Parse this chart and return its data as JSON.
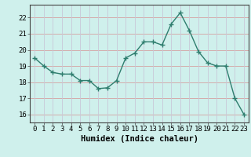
{
  "x": [
    0,
    1,
    2,
    3,
    4,
    5,
    6,
    7,
    8,
    9,
    10,
    11,
    12,
    13,
    14,
    15,
    16,
    17,
    18,
    19,
    20,
    21,
    22,
    23
  ],
  "y": [
    19.5,
    19.0,
    18.6,
    18.5,
    18.5,
    18.1,
    18.1,
    17.6,
    17.65,
    18.1,
    19.5,
    19.8,
    20.5,
    20.5,
    20.3,
    21.6,
    22.3,
    21.2,
    19.9,
    19.2,
    19.0,
    19.0,
    17.0,
    16.0
  ],
  "line_color": "#2e7d6e",
  "marker": "+",
  "marker_size": 4,
  "bg_color": "#cff0ec",
  "grid_color_h": "#d4a0a0",
  "grid_color_v": "#c8c8d8",
  "xlabel": "Humidex (Indice chaleur)",
  "xlim": [
    -0.5,
    23.5
  ],
  "ylim": [
    15.5,
    22.8
  ],
  "yticks": [
    16,
    17,
    18,
    19,
    20,
    21,
    22
  ],
  "xticks": [
    0,
    1,
    2,
    3,
    4,
    5,
    6,
    7,
    8,
    9,
    10,
    11,
    12,
    13,
    14,
    15,
    16,
    17,
    18,
    19,
    20,
    21,
    22,
    23
  ],
  "tick_fontsize": 6.5,
  "label_fontsize": 7.5,
  "linewidth": 1.0
}
